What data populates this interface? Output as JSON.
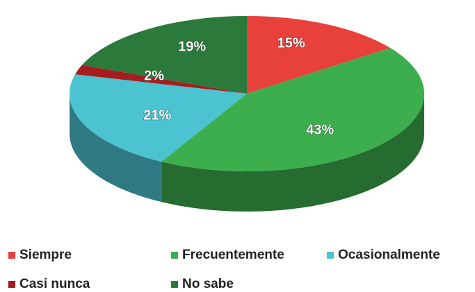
{
  "chart_data": {
    "type": "pie",
    "categories": [
      "Siempre",
      "Frecuentemente",
      "Ocasionalmente",
      "Casi nunca",
      "No sabe"
    ],
    "values": [
      15,
      43,
      21,
      2,
      19
    ],
    "value_labels": [
      "15%",
      "43%",
      "21%",
      "2%",
      "19%"
    ],
    "colors": [
      "#e8413b",
      "#3dae4d",
      "#4cc3d1",
      "#a51d1f",
      "#2b7a3b"
    ],
    "legend": "bottom"
  }
}
